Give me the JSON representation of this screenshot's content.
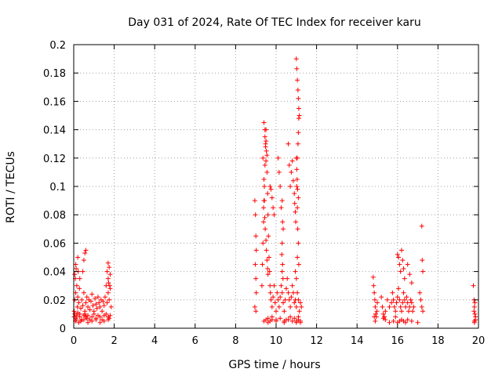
{
  "chart_data": {
    "type": "scatter",
    "title": "Day 031 of 2024, Rate Of TEC Index for receiver karu",
    "xlabel": "GPS time / hours",
    "ylabel": "ROTI / TECUs",
    "xlim": [
      0,
      20
    ],
    "ylim": [
      0,
      0.2
    ],
    "xticks": [
      0,
      2,
      4,
      6,
      8,
      10,
      12,
      14,
      16,
      18,
      20
    ],
    "yticks": [
      0,
      0.02,
      0.04,
      0.06,
      0.08,
      0.1,
      0.12,
      0.14,
      0.16,
      0.18,
      0.2
    ],
    "xtick_labels": [
      "0",
      "2",
      "4",
      "6",
      "8",
      "10",
      "12",
      "14",
      "16",
      "18",
      "20"
    ],
    "ytick_labels": [
      "0",
      "0.02",
      "0.04",
      "0.06",
      "0.08",
      "0.1",
      "0.12",
      "0.14",
      "0.16",
      "0.18",
      "0.2"
    ],
    "grid": true,
    "marker": "+",
    "color": "#ff0000",
    "series": [
      {
        "name": "ROTI",
        "x": [
          0.02,
          0.05,
          0.08,
          0.1,
          0.12,
          0.15,
          0.18,
          0.2,
          0.22,
          0.25,
          0.28,
          0.3,
          0.35,
          0.4,
          0.45,
          0.5,
          0.55,
          0.6,
          0.65,
          0.7,
          0.75,
          0.8,
          0.85,
          0.9,
          0.95,
          1.0,
          1.05,
          1.1,
          1.15,
          1.2,
          1.25,
          1.3,
          1.35,
          1.4,
          1.45,
          1.5,
          1.55,
          1.6,
          1.65,
          1.7,
          1.75,
          1.8,
          1.85,
          0.02,
          0.05,
          0.1,
          0.15,
          0.2,
          0.3,
          0.4,
          0.5,
          0.55,
          0.6,
          0.65,
          0.7,
          0.8,
          0.9,
          1.0,
          1.1,
          1.2,
          1.3,
          1.4,
          1.5,
          1.6,
          1.7,
          1.75,
          1.8,
          0.05,
          0.1,
          0.2,
          0.3,
          0.45,
          0.5,
          0.55,
          0.6,
          1.65,
          1.7,
          1.75,
          1.8,
          1.7,
          1.72,
          1.78,
          0.08,
          0.12,
          0.25,
          0.35,
          0.5,
          0.7,
          0.9,
          1.1,
          1.3,
          1.5,
          1.7,
          8.95,
          8.98,
          9.0,
          9.02,
          8.97,
          9.0,
          9.02,
          8.95,
          9.0,
          9.3,
          9.32,
          9.35,
          9.38,
          9.4,
          9.42,
          9.45,
          9.48,
          9.5,
          9.52,
          9.55,
          9.58,
          9.6,
          9.62,
          9.65,
          9.68,
          9.7,
          9.72,
          9.75,
          9.8,
          9.85,
          9.9,
          9.95,
          10.0,
          10.05,
          10.1,
          10.15,
          10.2,
          10.25,
          10.3,
          10.35,
          10.4,
          10.45,
          10.5,
          10.55,
          10.6,
          10.65,
          10.7,
          10.75,
          10.8,
          10.85,
          10.9,
          10.95,
          11.0,
          11.05,
          11.1,
          11.15,
          11.2,
          11.25,
          9.35,
          9.4,
          9.42,
          9.45,
          9.48,
          9.5,
          9.38,
          9.44,
          9.46,
          9.5,
          9.52,
          9.55,
          9.58,
          9.6,
          9.4,
          9.45,
          9.5,
          9.55,
          9.7,
          9.75,
          9.8,
          9.85,
          9.9,
          10.1,
          10.15,
          10.2,
          10.25,
          10.3,
          10.32,
          10.35,
          10.3,
          10.28,
          10.32,
          10.3,
          10.34,
          10.6,
          10.65,
          10.7,
          10.75,
          10.8,
          10.85,
          10.9,
          10.92,
          10.95,
          10.97,
          11.0,
          11.02,
          11.05,
          11.08,
          11.1,
          11.12,
          11.15,
          11.1,
          11.08,
          11.05,
          11.02,
          11.04,
          11.06,
          11.1,
          11.12,
          11.0,
          11.02,
          11.05,
          11.07,
          11.1,
          11.12,
          10.95,
          11.0,
          11.05,
          11.1,
          9.5,
          9.6,
          9.7,
          9.8,
          10.0,
          10.2,
          10.4,
          10.5,
          10.7,
          10.9,
          11.0,
          11.1,
          11.2,
          9.4,
          9.6,
          9.8,
          10.0,
          10.4,
          10.6,
          10.8,
          11.0,
          11.2,
          14.8,
          14.82,
          14.85,
          14.88,
          14.9,
          14.92,
          14.95,
          14.98,
          15.0,
          15.2,
          15.25,
          15.3,
          15.35,
          15.4,
          15.5,
          15.6,
          15.7,
          15.75,
          15.8,
          15.85,
          15.9,
          15.95,
          16.0,
          16.05,
          16.1,
          16.15,
          16.2,
          16.25,
          16.3,
          16.35,
          16.4,
          16.45,
          16.5,
          16.55,
          16.6,
          16.65,
          16.7,
          16.75,
          16.8,
          17.1,
          17.15,
          17.2,
          17.25,
          14.85,
          14.9,
          15.3,
          15.4,
          15.9,
          16.0,
          16.05,
          16.1,
          16.15,
          16.2,
          16.25,
          16.3,
          16.35,
          16.5,
          16.6,
          16.7,
          17.2,
          17.22,
          17.25,
          16.0,
          16.1,
          16.2,
          16.3,
          16.4,
          16.5,
          15.6,
          15.8,
          16.7,
          17.0,
          19.75,
          19.78,
          19.8,
          19.82,
          19.85,
          19.8,
          19.78,
          19.82,
          19.85,
          19.8
        ],
        "y": [
          0.012,
          0.02,
          0.035,
          0.025,
          0.042,
          0.03,
          0.015,
          0.022,
          0.04,
          0.018,
          0.028,
          0.01,
          0.014,
          0.02,
          0.016,
          0.025,
          0.012,
          0.018,
          0.022,
          0.015,
          0.02,
          0.013,
          0.019,
          0.024,
          0.016,
          0.012,
          0.021,
          0.017,
          0.014,
          0.022,
          0.018,
          0.015,
          0.02,
          0.012,
          0.019,
          0.016,
          0.022,
          0.03,
          0.018,
          0.025,
          0.02,
          0.028,
          0.015,
          0.008,
          0.01,
          0.007,
          0.009,
          0.011,
          0.008,
          0.006,
          0.009,
          0.01,
          0.008,
          0.007,
          0.009,
          0.006,
          0.008,
          0.01,
          0.007,
          0.009,
          0.008,
          0.006,
          0.009,
          0.01,
          0.008,
          0.007,
          0.009,
          0.038,
          0.045,
          0.05,
          0.035,
          0.04,
          0.048,
          0.053,
          0.055,
          0.04,
          0.046,
          0.043,
          0.038,
          0.035,
          0.032,
          0.03,
          0.005,
          0.006,
          0.004,
          0.005,
          0.006,
          0.004,
          0.005,
          0.006,
          0.004,
          0.005,
          0.006,
          0.09,
          0.08,
          0.065,
          0.055,
          0.045,
          0.035,
          0.025,
          0.015,
          0.012,
          0.03,
          0.045,
          0.06,
          0.075,
          0.09,
          0.1,
          0.115,
          0.13,
          0.14,
          0.125,
          0.11,
          0.095,
          0.08,
          0.065,
          0.05,
          0.04,
          0.03,
          0.025,
          0.02,
          0.015,
          0.022,
          0.03,
          0.018,
          0.012,
          0.025,
          0.02,
          0.015,
          0.022,
          0.03,
          0.025,
          0.018,
          0.012,
          0.02,
          0.028,
          0.035,
          0.025,
          0.02,
          0.015,
          0.022,
          0.03,
          0.025,
          0.018,
          0.02,
          0.015,
          0.025,
          0.02,
          0.012,
          0.018,
          0.015,
          0.12,
          0.105,
          0.09,
          0.135,
          0.128,
          0.118,
          0.085,
          0.078,
          0.07,
          0.062,
          0.055,
          0.048,
          0.042,
          0.038,
          0.145,
          0.14,
          0.132,
          0.122,
          0.1,
          0.098,
          0.092,
          0.085,
          0.08,
          0.12,
          0.11,
          0.1,
          0.085,
          0.09,
          0.075,
          0.07,
          0.06,
          0.052,
          0.045,
          0.04,
          0.035,
          0.13,
          0.115,
          0.1,
          0.11,
          0.118,
          0.104,
          0.095,
          0.088,
          0.082,
          0.075,
          0.19,
          0.183,
          0.175,
          0.168,
          0.162,
          0.155,
          0.15,
          0.138,
          0.13,
          0.12,
          0.112,
          0.105,
          0.098,
          0.092,
          0.148,
          0.12,
          0.1,
          0.085,
          0.07,
          0.06,
          0.045,
          0.04,
          0.035,
          0.05,
          0.008,
          0.006,
          0.007,
          0.005,
          0.008,
          0.006,
          0.007,
          0.005,
          0.006,
          0.008,
          0.007,
          0.005,
          0.006,
          0.004,
          0.005,
          0.004,
          0.006,
          0.005,
          0.004,
          0.006,
          0.005,
          0.004,
          0.005,
          0.036,
          0.03,
          0.025,
          0.02,
          0.015,
          0.01,
          0.008,
          0.012,
          0.018,
          0.022,
          0.015,
          0.01,
          0.008,
          0.012,
          0.02,
          0.015,
          0.018,
          0.025,
          0.02,
          0.015,
          0.012,
          0.018,
          0.022,
          0.028,
          0.02,
          0.015,
          0.012,
          0.018,
          0.025,
          0.02,
          0.015,
          0.022,
          0.018,
          0.012,
          0.015,
          0.02,
          0.018,
          0.012,
          0.015,
          0.025,
          0.02,
          0.015,
          0.012,
          0.008,
          0.005,
          0.007,
          0.006,
          0.008,
          0.052,
          0.05,
          0.045,
          0.04,
          0.055,
          0.048,
          0.042,
          0.035,
          0.045,
          0.038,
          0.032,
          0.072,
          0.048,
          0.04,
          0.004,
          0.005,
          0.006,
          0.005,
          0.004,
          0.006,
          0.004,
          0.005,
          0.005,
          0.004,
          0.03,
          0.02,
          0.015,
          0.01,
          0.008,
          0.005,
          0.012,
          0.018,
          0.006,
          0.004
        ]
      }
    ]
  }
}
